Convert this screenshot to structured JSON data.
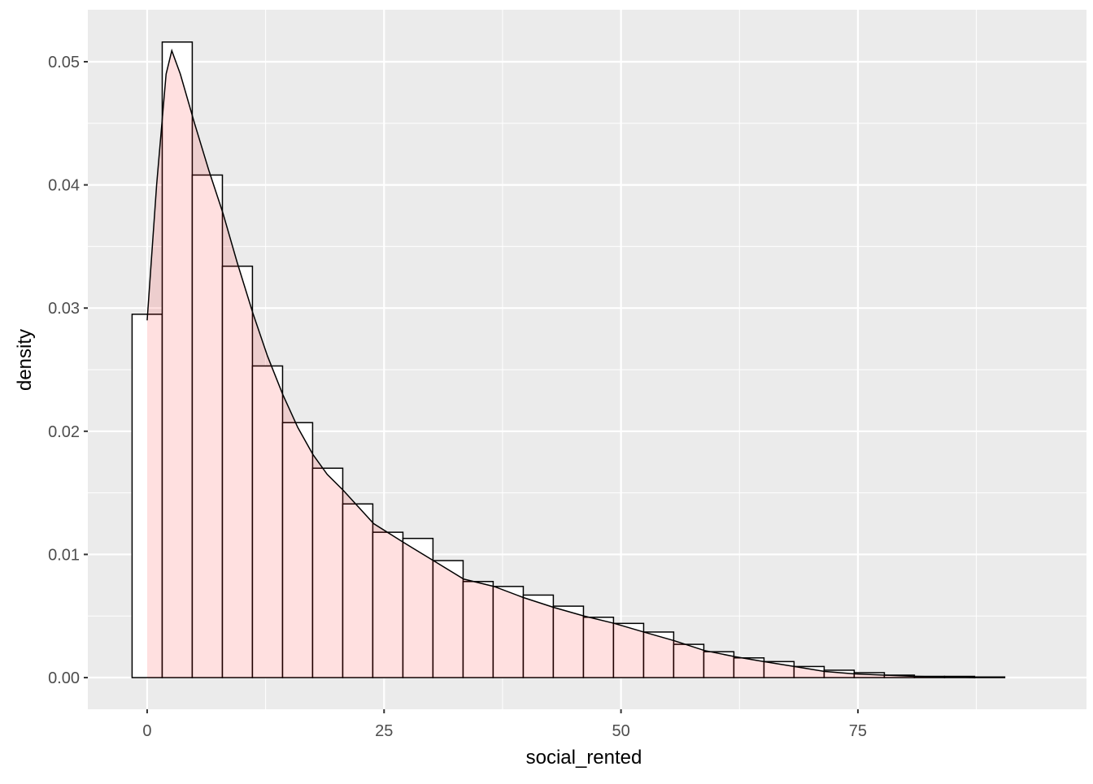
{
  "chart_data": {
    "type": "histogram",
    "x_label": "social_rented",
    "y_label": "density",
    "bins": [
      -1.59,
      1.59,
      4.76,
      7.94,
      11.11,
      14.29,
      17.46,
      20.64,
      23.81,
      26.99,
      30.16,
      33.34,
      36.51,
      39.69,
      42.86,
      46.04,
      49.21,
      52.39,
      55.56,
      58.74,
      61.91,
      65.09,
      68.26,
      71.44,
      74.61,
      77.79,
      80.96,
      84.14,
      87.31,
      90.49,
      93.66
    ],
    "values": [
      0.0295,
      0.0516,
      0.0408,
      0.0334,
      0.0253,
      0.0207,
      0.017,
      0.0141,
      0.0118,
      0.0113,
      0.0095,
      0.0078,
      0.0074,
      0.0067,
      0.0058,
      0.0049,
      0.0044,
      0.0037,
      0.0027,
      0.0021,
      0.0016,
      0.0013,
      0.0009,
      0.0006,
      0.0004,
      0.0002,
      0.0001,
      0.0001,
      5e-05,
      0
    ],
    "color": "#ffffff",
    "edge_color": "#000000",
    "density": {
      "x": [
        0,
        1,
        2,
        2.6,
        3.5,
        5,
        6.5,
        8,
        9.5,
        11.15,
        12.7,
        14.3,
        15.9,
        17.5,
        19,
        20.7,
        23.9,
        27,
        30.2,
        33.4,
        36.6,
        39.7,
        42.9,
        46.1,
        49.3,
        52.4,
        55.6,
        58.8,
        62,
        65.1,
        68.3,
        71.5,
        74.7,
        77.8,
        81,
        84.2,
        87.4
      ],
      "values": [
        0.029,
        0.04,
        0.049,
        0.0509,
        0.049,
        0.045,
        0.0412,
        0.0377,
        0.0337,
        0.0296,
        0.0261,
        0.023,
        0.0203,
        0.0181,
        0.0165,
        0.0152,
        0.0125,
        0.011,
        0.0095,
        0.008,
        0.0074,
        0.0065,
        0.0057,
        0.005,
        0.0044,
        0.0037,
        0.003,
        0.0022,
        0.0017,
        0.0013,
        0.0009,
        0.0005,
        0.0003,
        0.0002,
        0.0001,
        5e-05,
        0
      ],
      "color": "#ff0000"
    },
    "xlim": [
      -6.26,
      99.12
    ],
    "ylim": [
      -0.00257,
      0.05422
    ],
    "xticks": [
      0,
      25,
      50,
      75
    ],
    "yticks": [
      {
        "value": 0,
        "label": "0.00"
      },
      {
        "value": 0.01,
        "label": "0.01"
      },
      {
        "value": 0.02,
        "label": "0.02"
      },
      {
        "value": 0.03,
        "label": "0.03"
      },
      {
        "value": 0.04,
        "label": "0.04"
      },
      {
        "value": 0.05,
        "label": "0.05"
      }
    ],
    "grid": true,
    "panel_background": "#ebebeb"
  }
}
